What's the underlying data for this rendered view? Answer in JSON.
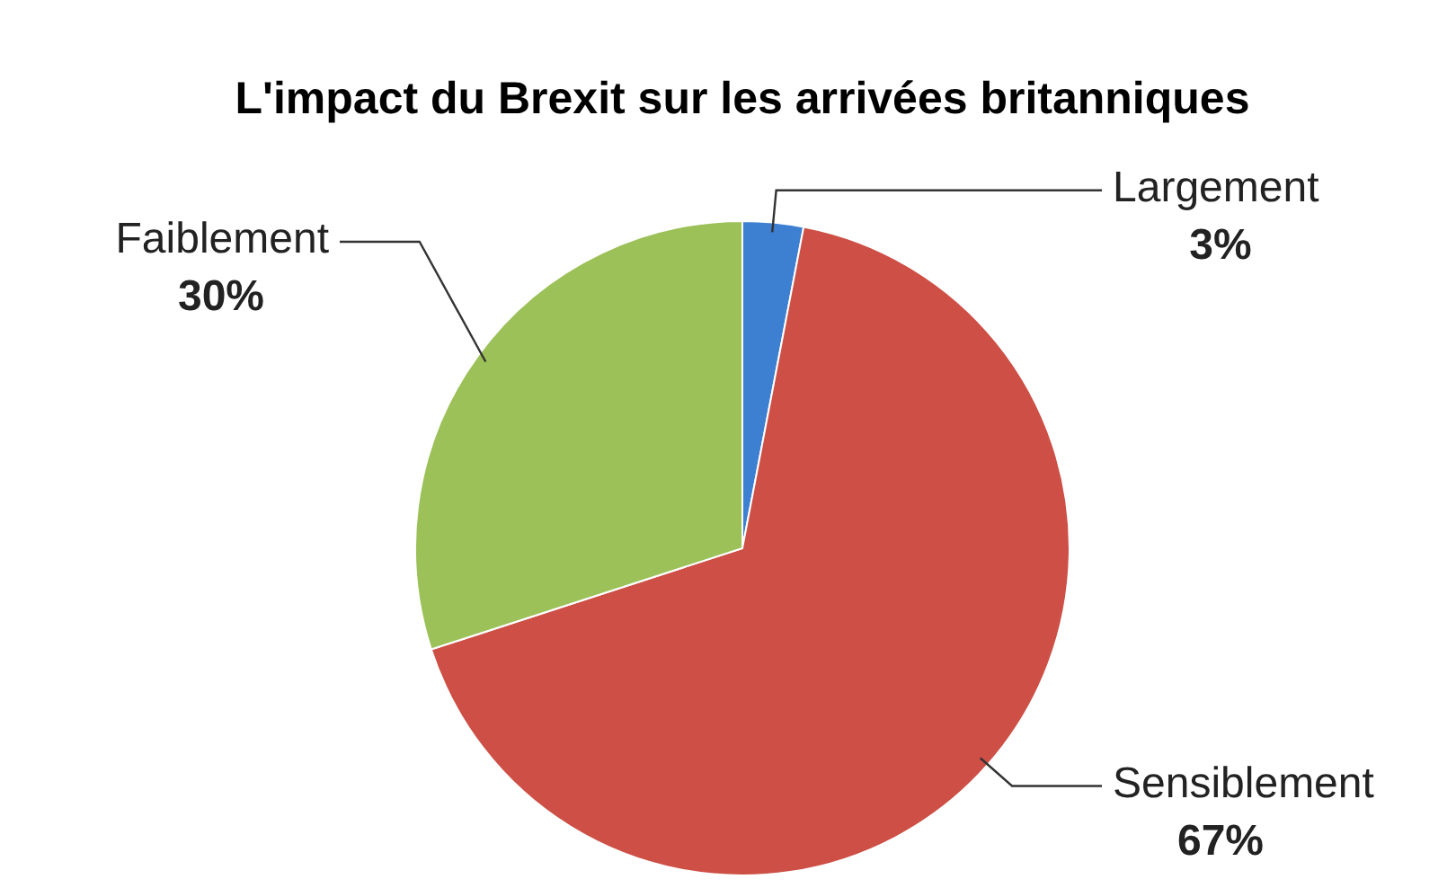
{
  "chart_data": {
    "type": "pie",
    "title": "L'impact du Brexit sur les arrivées britanniques",
    "categories": [
      "Largement",
      "Sensiblement",
      "Faiblement"
    ],
    "values": [
      3,
      67,
      30
    ],
    "value_labels": [
      "3%",
      "67%",
      "30%"
    ],
    "colors": [
      "#3d7fd1",
      "#cd4f45",
      "#9cc158"
    ]
  }
}
